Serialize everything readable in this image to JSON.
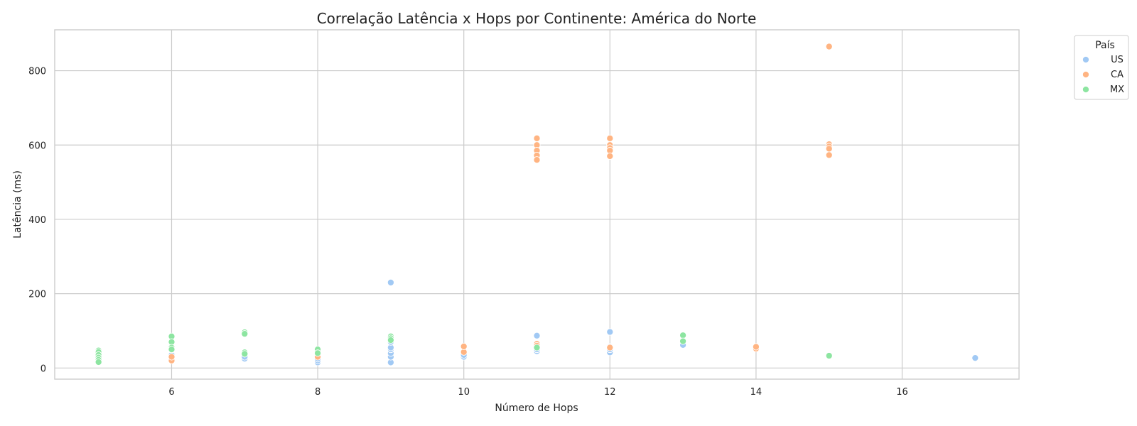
{
  "chart_data": {
    "type": "scatter",
    "title": "Correlação Latência x Hops por Continente: América do Norte",
    "xlabel": "Número de Hops",
    "ylabel": "Latência (ms)",
    "xlim": [
      4.4,
      17.6
    ],
    "ylim": [
      -30,
      910
    ],
    "xticks": [
      6,
      8,
      10,
      12,
      14,
      16
    ],
    "yticks": [
      0,
      200,
      400,
      600,
      800
    ],
    "grid": true,
    "legend": {
      "title": "País",
      "position": "top-right-outside"
    },
    "series": [
      {
        "name": "US",
        "color": "#a1c9f4",
        "points": [
          [
            5,
            20
          ],
          [
            5,
            30
          ],
          [
            6,
            25
          ],
          [
            6,
            35
          ],
          [
            7,
            25
          ],
          [
            7,
            30
          ],
          [
            8,
            15
          ],
          [
            8,
            20
          ],
          [
            8,
            25
          ],
          [
            9,
            230
          ],
          [
            9,
            15
          ],
          [
            9,
            30
          ],
          [
            9,
            40
          ],
          [
            9,
            50
          ],
          [
            9,
            55
          ],
          [
            9,
            70
          ],
          [
            10,
            30
          ],
          [
            10,
            35
          ],
          [
            11,
            87
          ],
          [
            11,
            45
          ],
          [
            11,
            50
          ],
          [
            12,
            97
          ],
          [
            12,
            42
          ],
          [
            12,
            50
          ],
          [
            12,
            57
          ],
          [
            13,
            62
          ],
          [
            17,
            27
          ]
        ]
      },
      {
        "name": "CA",
        "color": "#ffb482",
        "points": [
          [
            6,
            20
          ],
          [
            6,
            30
          ],
          [
            8,
            30
          ],
          [
            8,
            45
          ],
          [
            10,
            43
          ],
          [
            10,
            58
          ],
          [
            11,
            618
          ],
          [
            11,
            600
          ],
          [
            11,
            585
          ],
          [
            11,
            572
          ],
          [
            11,
            560
          ],
          [
            11,
            65
          ],
          [
            11,
            60
          ],
          [
            12,
            618
          ],
          [
            12,
            600
          ],
          [
            12,
            592
          ],
          [
            12,
            585
          ],
          [
            12,
            570
          ],
          [
            12,
            55
          ],
          [
            14,
            52
          ],
          [
            14,
            57
          ],
          [
            15,
            865
          ],
          [
            15,
            602
          ],
          [
            15,
            596
          ],
          [
            15,
            590
          ],
          [
            15,
            573
          ]
        ]
      },
      {
        "name": "MX",
        "color": "#8de5a1",
        "points": [
          [
            5,
            47
          ],
          [
            5,
            43
          ],
          [
            5,
            35
          ],
          [
            5,
            28
          ],
          [
            5,
            22
          ],
          [
            5,
            16
          ],
          [
            6,
            85
          ],
          [
            6,
            70
          ],
          [
            6,
            55
          ],
          [
            6,
            50
          ],
          [
            7,
            96
          ],
          [
            7,
            92
          ],
          [
            7,
            42
          ],
          [
            7,
            38
          ],
          [
            8,
            50
          ],
          [
            8,
            40
          ],
          [
            9,
            85
          ],
          [
            9,
            80
          ],
          [
            9,
            75
          ],
          [
            11,
            55
          ],
          [
            13,
            88
          ],
          [
            13,
            72
          ],
          [
            15,
            33
          ]
        ]
      }
    ]
  }
}
